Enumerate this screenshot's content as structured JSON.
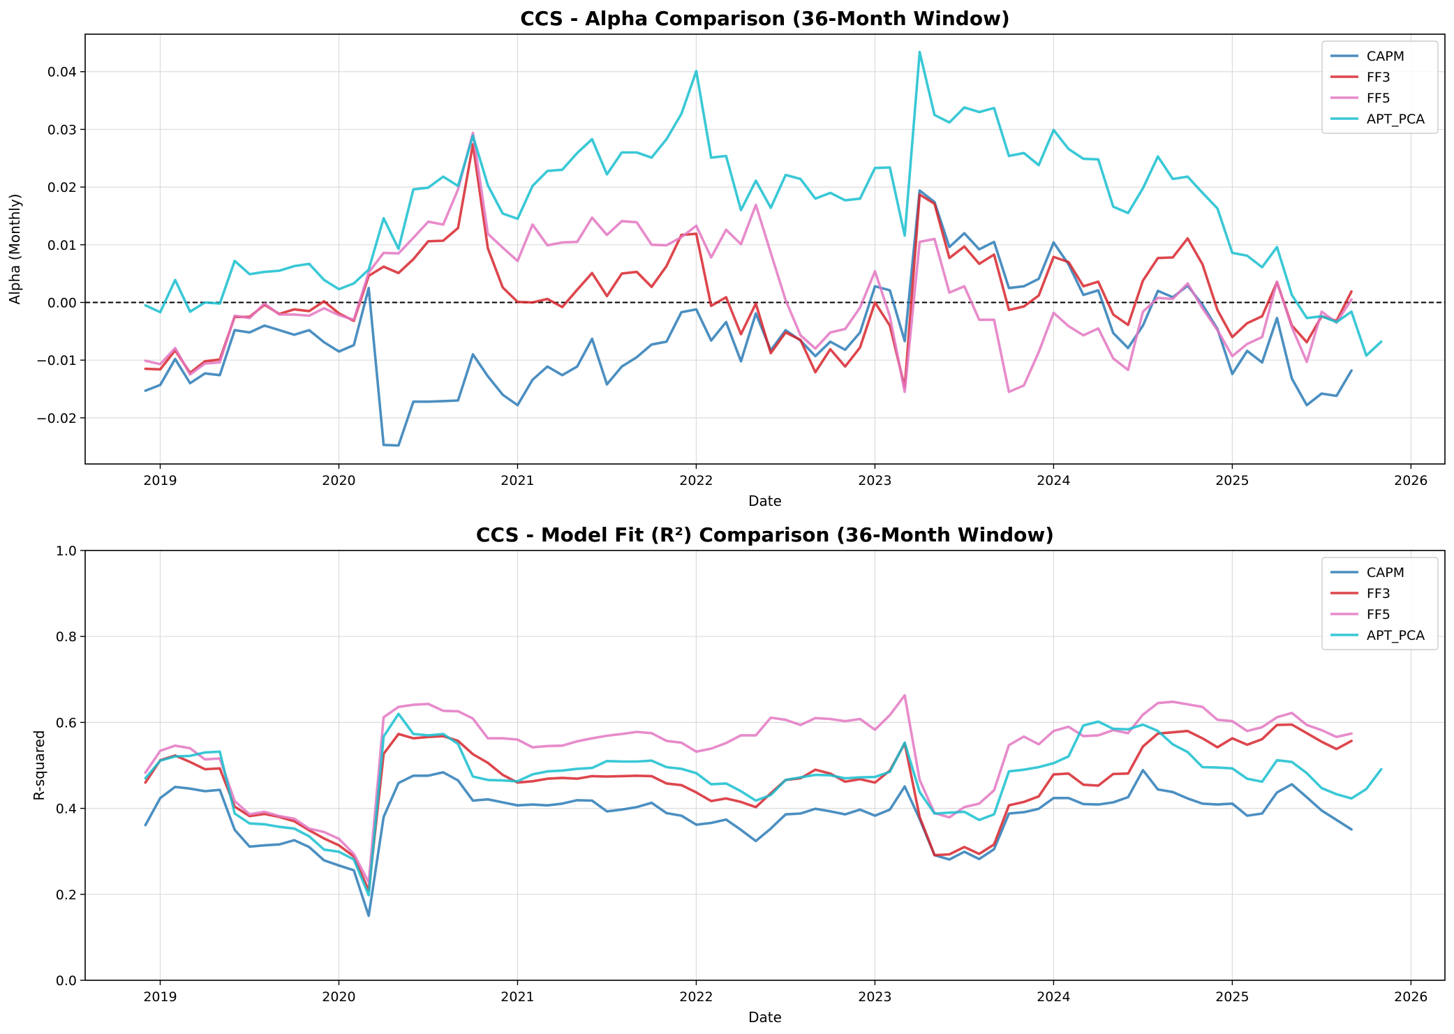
{
  "colors": {
    "CAPM": "#2c7bb6",
    "FF3": "#d7262e",
    "FF5": "#e377c2",
    "APT_PCA": "#17becf"
  },
  "chart_data": [
    {
      "type": "line",
      "title": "CCS - Alpha Comparison (36-Month Window)",
      "xlabel": "Date",
      "ylabel": "Alpha (Monthly)",
      "xlim": [
        2018.58,
        2026.19
      ],
      "ylim": [
        -0.028,
        0.0465
      ],
      "xticks": [
        2019,
        2020,
        2021,
        2022,
        2023,
        2024,
        2025,
        2026
      ],
      "xtick_labels": [
        "2019",
        "2020",
        "2021",
        "2022",
        "2023",
        "2024",
        "2025",
        "2026"
      ],
      "yticks": [
        -0.02,
        -0.01,
        0.0,
        0.01,
        0.02,
        0.03,
        0.04
      ],
      "ytick_labels": [
        "−0.02",
        "−0.01",
        "0.00",
        "0.01",
        "0.02",
        "0.03",
        "0.04"
      ],
      "reference_line": 0.0,
      "grid": true,
      "legend": "top-right",
      "x_start": 2018.917,
      "x_step": 0.08333,
      "series": [
        {
          "name": "CAPM",
          "values": [
            -0.0153,
            -0.0143,
            -0.0098,
            -0.014,
            -0.0123,
            -0.0126,
            -0.0048,
            -0.0052,
            -0.004,
            -0.0048,
            -0.0056,
            -0.0048,
            -0.0069,
            -0.0085,
            -0.0074,
            0.0025,
            -0.0247,
            -0.0248,
            -0.0172,
            -0.0172,
            -0.0171,
            -0.017,
            -0.009,
            -0.0128,
            -0.016,
            -0.0178,
            -0.0134,
            -0.0111,
            -0.0126,
            -0.0111,
            -0.0063,
            -0.0142,
            -0.0111,
            -0.0095,
            -0.0073,
            -0.0068,
            -0.0017,
            -0.0012,
            -0.0066,
            -0.0034,
            -0.0102,
            -0.0019,
            -0.0083,
            -0.0048,
            -0.0066,
            -0.0093,
            -0.0068,
            -0.0082,
            -0.0052,
            0.0028,
            0.0021,
            -0.0067,
            0.0194,
            0.0174,
            0.0096,
            0.012,
            0.0092,
            0.0105,
            0.0025,
            0.0028,
            0.0041,
            0.0104,
            0.0066,
            0.0013,
            0.0021,
            -0.0053,
            -0.0079,
            -0.004,
            0.002,
            0.0009,
            0.0029,
            -0.0004,
            -0.0046,
            -0.0124,
            -0.0084,
            -0.0104,
            -0.0027,
            -0.0132,
            -0.0178,
            -0.0158,
            -0.0162,
            -0.0118
          ]
        },
        {
          "name": "FF3",
          "values": [
            -0.0115,
            -0.0116,
            -0.0083,
            -0.0122,
            -0.0102,
            -0.0099,
            -0.0025,
            -0.0025,
            -0.0004,
            -0.002,
            -0.0012,
            -0.0015,
            0.0002,
            -0.0019,
            -0.0032,
            0.0046,
            0.0062,
            0.0051,
            0.0075,
            0.0106,
            0.0107,
            0.0129,
            0.0274,
            0.0094,
            0.0026,
            0.0001,
            0.0,
            0.0006,
            -0.0008,
            0.0022,
            0.0051,
            0.0011,
            0.005,
            0.0053,
            0.0027,
            0.0063,
            0.0117,
            0.0119,
            -0.0006,
            0.0009,
            -0.0055,
            -0.0002,
            -0.0088,
            -0.0052,
            -0.0065,
            -0.0121,
            -0.0081,
            -0.0111,
            -0.0078,
            0.0,
            -0.004,
            -0.0147,
            0.0187,
            0.0171,
            0.0077,
            0.0097,
            0.0067,
            0.0083,
            -0.0013,
            -0.0007,
            0.0012,
            0.0079,
            0.007,
            0.0028,
            0.0036,
            -0.0021,
            -0.0039,
            0.0038,
            0.0077,
            0.0078,
            0.0111,
            0.0066,
            -0.0013,
            -0.006,
            -0.0036,
            -0.0024,
            0.0035,
            -0.004,
            -0.0069,
            -0.0024,
            -0.0032,
            0.0019
          ]
        },
        {
          "name": "FF5",
          "values": [
            -0.0101,
            -0.0107,
            -0.0079,
            -0.0125,
            -0.0106,
            -0.0104,
            -0.0023,
            -0.0027,
            -0.0002,
            -0.0021,
            -0.0021,
            -0.0023,
            -0.001,
            -0.0022,
            -0.003,
            0.0052,
            0.0086,
            0.0085,
            0.0112,
            0.014,
            0.0135,
            0.0196,
            0.0294,
            0.0119,
            0.0095,
            0.0072,
            0.0135,
            0.0099,
            0.0104,
            0.0105,
            0.0147,
            0.0117,
            0.0141,
            0.0139,
            0.01,
            0.0099,
            0.0113,
            0.0133,
            0.0078,
            0.0126,
            0.0101,
            0.0169,
            0.0086,
            0.0004,
            -0.0057,
            -0.008,
            -0.0052,
            -0.0046,
            -0.0009,
            0.0054,
            -0.0024,
            -0.0155,
            0.0105,
            0.011,
            0.0017,
            0.0028,
            -0.003,
            -0.003,
            -0.0155,
            -0.0144,
            -0.0086,
            -0.0018,
            -0.0041,
            -0.0057,
            -0.0045,
            -0.0097,
            -0.0117,
            -0.0016,
            0.0008,
            0.0006,
            0.0033,
            -0.001,
            -0.0048,
            -0.0093,
            -0.0072,
            -0.006,
            0.0036,
            -0.0043,
            -0.0103,
            -0.0016,
            -0.0035,
            0.0005
          ]
        },
        {
          "name": "APT_PCA",
          "values": [
            -0.0005,
            -0.0017,
            0.0039,
            -0.0016,
            0.0,
            -0.0002,
            0.0072,
            0.0049,
            0.0053,
            0.0055,
            0.0063,
            0.0067,
            0.0039,
            0.0023,
            0.0033,
            0.0057,
            0.0146,
            0.0093,
            0.0196,
            0.0199,
            0.0218,
            0.0202,
            0.0289,
            0.0203,
            0.0154,
            0.0145,
            0.0202,
            0.0228,
            0.023,
            0.0259,
            0.0283,
            0.0222,
            0.026,
            0.026,
            0.0251,
            0.0283,
            0.0327,
            0.0401,
            0.0251,
            0.0254,
            0.016,
            0.0211,
            0.0164,
            0.0221,
            0.0214,
            0.018,
            0.019,
            0.0177,
            0.018,
            0.0233,
            0.0234,
            0.0116,
            0.0434,
            0.0325,
            0.0312,
            0.0338,
            0.033,
            0.0337,
            0.0254,
            0.0259,
            0.0238,
            0.0299,
            0.0266,
            0.0249,
            0.0248,
            0.0166,
            0.0155,
            0.0198,
            0.0253,
            0.0214,
            0.0218,
            0.019,
            0.0163,
            0.0086,
            0.0081,
            0.0061,
            0.0096,
            0.0013,
            -0.0027,
            -0.0024,
            -0.0034,
            -0.0016,
            -0.0092,
            -0.0068
          ]
        }
      ]
    },
    {
      "type": "line",
      "title": "CCS - Model Fit (R²) Comparison (36-Month Window)",
      "xlabel": "Date",
      "ylabel": "R-squared",
      "xlim": [
        2018.58,
        2026.19
      ],
      "ylim": [
        0.0,
        1.0
      ],
      "xticks": [
        2019,
        2020,
        2021,
        2022,
        2023,
        2024,
        2025,
        2026
      ],
      "xtick_labels": [
        "2019",
        "2020",
        "2021",
        "2022",
        "2023",
        "2024",
        "2025",
        "2026"
      ],
      "yticks": [
        0.0,
        0.2,
        0.4,
        0.6,
        0.8,
        1.0
      ],
      "ytick_labels": [
        "0.0",
        "0.2",
        "0.4",
        "0.6",
        "0.8",
        "1.0"
      ],
      "grid": true,
      "legend": "top-right",
      "x_start": 2018.917,
      "x_step": 0.08333,
      "series": [
        {
          "name": "CAPM",
          "values": [
            0.361,
            0.424,
            0.45,
            0.446,
            0.44,
            0.443,
            0.35,
            0.311,
            0.314,
            0.316,
            0.326,
            0.31,
            0.279,
            0.267,
            0.256,
            0.15,
            0.38,
            0.459,
            0.476,
            0.476,
            0.484,
            0.465,
            0.418,
            0.421,
            0.414,
            0.407,
            0.409,
            0.407,
            0.411,
            0.419,
            0.418,
            0.393,
            0.397,
            0.403,
            0.413,
            0.389,
            0.383,
            0.362,
            0.366,
            0.374,
            0.35,
            0.324,
            0.353,
            0.386,
            0.388,
            0.399,
            0.393,
            0.386,
            0.397,
            0.383,
            0.397,
            0.451,
            0.375,
            0.291,
            0.281,
            0.299,
            0.282,
            0.305,
            0.388,
            0.391,
            0.399,
            0.424,
            0.424,
            0.41,
            0.409,
            0.414,
            0.426,
            0.489,
            0.444,
            0.438,
            0.423,
            0.411,
            0.409,
            0.411,
            0.383,
            0.388,
            0.437,
            0.456,
            0.426,
            0.395,
            0.373,
            0.351
          ]
        },
        {
          "name": "FF3",
          "values": [
            0.46,
            0.512,
            0.523,
            0.508,
            0.491,
            0.493,
            0.404,
            0.382,
            0.387,
            0.38,
            0.37,
            0.349,
            0.33,
            0.314,
            0.288,
            0.209,
            0.527,
            0.573,
            0.563,
            0.566,
            0.568,
            0.557,
            0.526,
            0.506,
            0.478,
            0.46,
            0.463,
            0.469,
            0.471,
            0.469,
            0.475,
            0.474,
            0.475,
            0.476,
            0.475,
            0.458,
            0.454,
            0.437,
            0.417,
            0.423,
            0.415,
            0.403,
            0.435,
            0.466,
            0.47,
            0.49,
            0.481,
            0.462,
            0.468,
            0.46,
            0.488,
            0.551,
            0.38,
            0.291,
            0.293,
            0.31,
            0.294,
            0.316,
            0.407,
            0.415,
            0.428,
            0.479,
            0.481,
            0.455,
            0.453,
            0.48,
            0.481,
            0.544,
            0.574,
            0.577,
            0.58,
            0.563,
            0.542,
            0.563,
            0.548,
            0.561,
            0.594,
            0.595,
            0.575,
            0.555,
            0.538,
            0.557
          ]
        },
        {
          "name": "FF5",
          "values": [
            0.483,
            0.534,
            0.546,
            0.54,
            0.514,
            0.516,
            0.417,
            0.386,
            0.392,
            0.382,
            0.376,
            0.353,
            0.345,
            0.329,
            0.294,
            0.228,
            0.612,
            0.636,
            0.641,
            0.643,
            0.627,
            0.626,
            0.609,
            0.563,
            0.563,
            0.56,
            0.542,
            0.545,
            0.546,
            0.556,
            0.563,
            0.569,
            0.573,
            0.578,
            0.575,
            0.557,
            0.553,
            0.532,
            0.539,
            0.552,
            0.57,
            0.57,
            0.611,
            0.606,
            0.594,
            0.61,
            0.608,
            0.603,
            0.608,
            0.583,
            0.617,
            0.663,
            0.466,
            0.389,
            0.379,
            0.403,
            0.411,
            0.442,
            0.547,
            0.567,
            0.549,
            0.58,
            0.59,
            0.568,
            0.57,
            0.582,
            0.575,
            0.618,
            0.645,
            0.648,
            0.642,
            0.636,
            0.606,
            0.603,
            0.58,
            0.589,
            0.612,
            0.622,
            0.594,
            0.582,
            0.566,
            0.574
          ]
        },
        {
          "name": "APT_PCA",
          "values": [
            0.47,
            0.511,
            0.521,
            0.522,
            0.53,
            0.532,
            0.388,
            0.365,
            0.363,
            0.357,
            0.353,
            0.335,
            0.304,
            0.299,
            0.281,
            0.198,
            0.567,
            0.62,
            0.573,
            0.57,
            0.573,
            0.55,
            0.474,
            0.466,
            0.465,
            0.463,
            0.479,
            0.486,
            0.488,
            0.492,
            0.494,
            0.51,
            0.509,
            0.509,
            0.511,
            0.496,
            0.492,
            0.482,
            0.456,
            0.458,
            0.44,
            0.418,
            0.431,
            0.466,
            0.472,
            0.478,
            0.477,
            0.47,
            0.472,
            0.473,
            0.485,
            0.553,
            0.438,
            0.388,
            0.39,
            0.392,
            0.373,
            0.386,
            0.486,
            0.49,
            0.496,
            0.505,
            0.521,
            0.593,
            0.602,
            0.585,
            0.584,
            0.595,
            0.58,
            0.549,
            0.531,
            0.496,
            0.495,
            0.493,
            0.469,
            0.462,
            0.512,
            0.508,
            0.482,
            0.447,
            0.433,
            0.423,
            0.445,
            0.491
          ]
        }
      ]
    }
  ]
}
